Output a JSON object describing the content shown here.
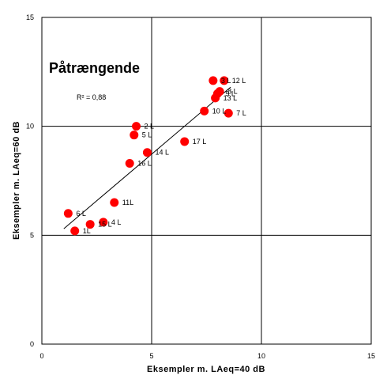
{
  "chart_data": {
    "type": "scatter",
    "title": "Påtrængende",
    "annotation": "R² = 0,88",
    "xlabel": "Eksempler m. LAeq=40 dB",
    "ylabel": "Eksempler m. LAeq=60 dB",
    "xlim": [
      0,
      15
    ],
    "ylim": [
      0,
      15
    ],
    "xticks": [
      "0",
      "5",
      "10",
      "15"
    ],
    "yticks": [
      "0",
      "5",
      "10",
      "15"
    ],
    "grid": true,
    "point_color": "#ff0000",
    "points": [
      {
        "x": 1.2,
        "y": 6.0,
        "label": "6 L"
      },
      {
        "x": 1.5,
        "y": 5.2,
        "label": "1L"
      },
      {
        "x": 2.2,
        "y": 5.5,
        "label": "15 L"
      },
      {
        "x": 2.8,
        "y": 5.6,
        "label": "4 L"
      },
      {
        "x": 3.3,
        "y": 6.5,
        "label": "11L"
      },
      {
        "x": 4.0,
        "y": 8.3,
        "label": "16 L"
      },
      {
        "x": 4.2,
        "y": 9.6,
        "label": "5 L"
      },
      {
        "x": 4.3,
        "y": 10.0,
        "label": "2 L"
      },
      {
        "x": 4.8,
        "y": 8.8,
        "label": "14 L"
      },
      {
        "x": 6.5,
        "y": 9.3,
        "label": "17 L"
      },
      {
        "x": 7.4,
        "y": 10.7,
        "label": "10 L"
      },
      {
        "x": 7.8,
        "y": 12.1,
        "label": "3 L"
      },
      {
        "x": 7.9,
        "y": 11.3,
        "label": "13 L"
      },
      {
        "x": 8.0,
        "y": 11.5,
        "label": "9 L"
      },
      {
        "x": 8.1,
        "y": 11.6,
        "label": "8 L"
      },
      {
        "x": 8.3,
        "y": 12.1,
        "label": "12 L"
      },
      {
        "x": 8.5,
        "y": 10.6,
        "label": "7 L"
      }
    ],
    "trendline": {
      "x1": 1.0,
      "y1": 5.3,
      "x2": 8.6,
      "y2": 11.8
    }
  }
}
